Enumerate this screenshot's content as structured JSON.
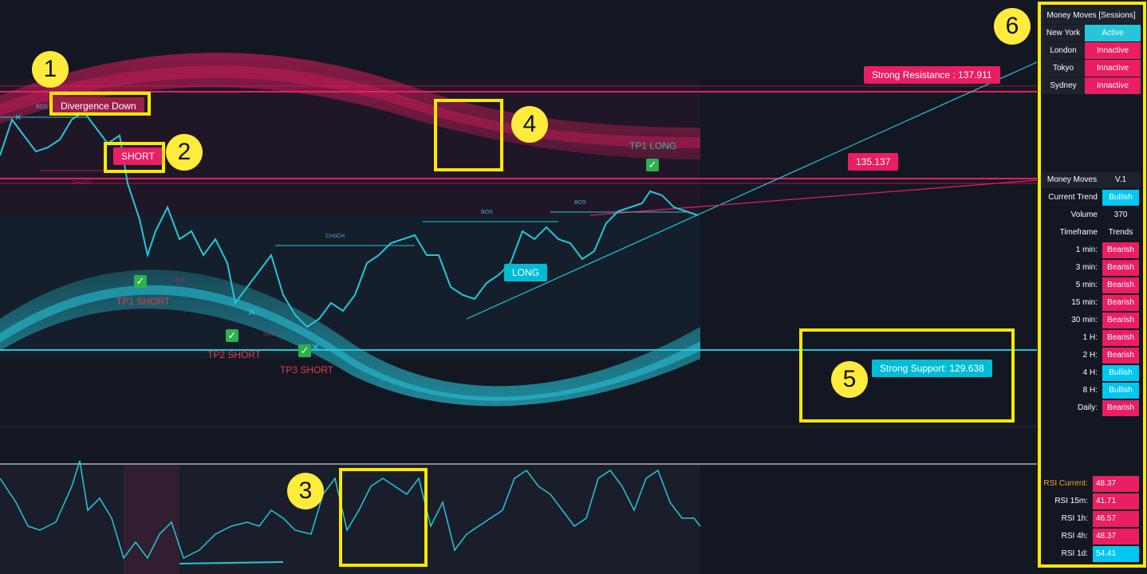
{
  "markers": {
    "n1": "1",
    "n2": "2",
    "n3": "3",
    "n4": "4",
    "n5": "5",
    "n6": "6"
  },
  "chart": {
    "divergence_label": "Divergence Down",
    "short_label": "SHORT",
    "long_label": "LONG",
    "tp1_short": "TP1 SHORT",
    "tp2_short": "TP2 SHORT",
    "tp3_short": "TP3 SHORT",
    "tp1_long": "TP1 LONG",
    "choch_labels": [
      "CHoCH",
      "CHoCH"
    ],
    "bos_labels": [
      "BOS",
      "BOS",
      "BOS",
      "BOS",
      "BOS"
    ],
    "strong_resistance": "Strong Resistance : 137.911",
    "mid_level": "135.137",
    "strong_support": "Strong Support: 129.638",
    "check_mark": "✓",
    "cross_mark": "✕"
  },
  "sessions": {
    "title": "Money Moves [Sessions]",
    "rows": [
      {
        "name": "New York",
        "status": "Active",
        "color": "#26c6da"
      },
      {
        "name": "London",
        "status": "Innactive",
        "color": "#e91e63"
      },
      {
        "name": "Tokyo",
        "status": "Innactive",
        "color": "#e91e63"
      },
      {
        "name": "Sydney",
        "status": "Innactive",
        "color": "#e91e63"
      }
    ]
  },
  "trend": {
    "title_left": "Money Moves",
    "title_right": "V.1",
    "current_trend_label": "Current Trend",
    "current_trend_value": "Bullish",
    "volume_label": "Volume",
    "volume_value": "370",
    "timeframe_label": "Timeframe",
    "trends_label": "Trends",
    "rows": [
      {
        "tf": "1 min:",
        "trend": "Bearish",
        "color": "#e91e63"
      },
      {
        "tf": "3 min:",
        "trend": "Bearish",
        "color": "#e91e63"
      },
      {
        "tf": "5 min:",
        "trend": "Bearish",
        "color": "#e91e63"
      },
      {
        "tf": "15 min:",
        "trend": "Bearish",
        "color": "#e91e63"
      },
      {
        "tf": "30 min:",
        "trend": "Bearish",
        "color": "#e91e63"
      },
      {
        "tf": "1 H:",
        "trend": "Bearish",
        "color": "#e91e63"
      },
      {
        "tf": "2 H:",
        "trend": "Bearish",
        "color": "#e91e63"
      },
      {
        "tf": "4 H:",
        "trend": "Bullish",
        "color": "#00c8f0"
      },
      {
        "tf": "8 H:",
        "trend": "Bullish",
        "color": "#00c8f0"
      },
      {
        "tf": "Daily:",
        "trend": "Bearish",
        "color": "#e91e63"
      }
    ]
  },
  "rsi": {
    "rows": [
      {
        "label": "RSI Current:",
        "value": "48.37",
        "color": "#e91e63",
        "label_color": "#f5a623"
      },
      {
        "label": "RSI 15m:",
        "value": "41.71",
        "color": "#e91e63",
        "label_color": "#ffffff"
      },
      {
        "label": "RSI 1h:",
        "value": "46.57",
        "color": "#e91e63",
        "label_color": "#ffffff"
      },
      {
        "label": "RSI 4h:",
        "value": "48.37",
        "color": "#e91e63",
        "label_color": "#ffffff"
      },
      {
        "label": "RSI 1d:",
        "value": "54.41",
        "color": "#00c8f0",
        "label_color": "#ffffff"
      }
    ]
  },
  "colors": {
    "bear": "#e91e63",
    "bull": "#26c6da",
    "highlight": "#ffe800"
  }
}
